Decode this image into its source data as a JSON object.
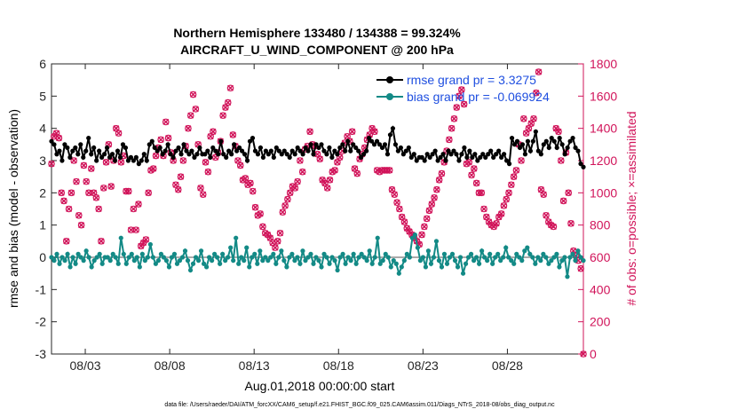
{
  "chart_data": {
    "type": "line",
    "title_line1": "Northern Hemisphere 133480 / 134388 = 99.324%",
    "title_line2": "AIRCRAFT_U_WIND_COMPONENT @ 200 hPa",
    "xlabel": "Aug.01,2018 00:00:00 start",
    "ylabel_left": "rmse and bias (model - observation)",
    "ylabel_right": "# of obs: o=possible; ×=assimilated",
    "ylim_left": [
      -3,
      6
    ],
    "ylim_right": [
      0,
      1800
    ],
    "xlim": [
      0,
      31.5
    ],
    "x_ticks": [
      {
        "x": 2,
        "label": "08/03"
      },
      {
        "x": 7,
        "label": "08/08"
      },
      {
        "x": 12,
        "label": "08/13"
      },
      {
        "x": 17,
        "label": "08/18"
      },
      {
        "x": 22,
        "label": "08/23"
      },
      {
        "x": 27,
        "label": "08/28"
      }
    ],
    "y_ticks_left": [
      "-3",
      "-2",
      "-1",
      "0",
      "1",
      "2",
      "3",
      "4",
      "5",
      "6"
    ],
    "y_ticks_right": [
      "0",
      "200",
      "400",
      "600",
      "800",
      "1000",
      "1200",
      "1400",
      "1600",
      "1800"
    ],
    "legend": [
      {
        "label": "rmse grand pr = 3.3275",
        "color": "#000000"
      },
      {
        "label": "bias grand pr = -0.069924",
        "color": "#138a86"
      }
    ],
    "colors": {
      "rmse": "#000000",
      "bias": "#138a86",
      "obs": "#d1145a",
      "zero_line": "#aaaaaa"
    },
    "rmse": [
      3.6,
      3.5,
      3.2,
      3.3,
      3.0,
      3.5,
      3.4,
      3.1,
      3.3,
      3.4,
      3.2,
      3.5,
      3.1,
      3.3,
      3.7,
      3.2,
      3.4,
      3.0,
      3.3,
      3.1,
      3.2,
      3.4,
      3.1,
      3.2,
      3.0,
      3.3,
      3.1,
      3.5,
      3.4,
      3.0,
      3.1,
      3.0,
      3.1,
      2.9,
      3.0,
      3.2,
      3.0,
      3.5,
      3.6,
      3.4,
      3.3,
      3.4,
      3.2,
      3.3,
      3.5,
      3.2,
      3.1,
      3.3,
      3.4,
      3.2,
      3.5,
      3.3,
      3.2,
      3.3,
      3.1,
      3.2,
      3.4,
      3.2,
      3.2,
      3.3,
      3.1,
      3.4,
      3.3,
      3.2,
      3.6,
      3.2,
      3.1,
      3.3,
      3.2,
      3.5,
      3.3,
      3.4,
      3.3,
      3.2,
      3.0,
      3.6,
      3.7,
      3.3,
      3.2,
      3.4,
      3.1,
      3.3,
      3.2,
      3.3,
      3.1,
      3.4,
      3.3,
      3.2,
      3.3,
      3.2,
      3.1,
      3.3,
      3.2,
      3.4,
      3.3,
      3.2,
      3.4,
      3.3,
      3.5,
      3.2,
      3.5,
      3.4,
      3.5,
      3.3,
      3.2,
      3.4,
      3.1,
      3.3,
      3.2,
      3.4,
      3.5,
      3.3,
      3.6,
      3.3,
      3.5,
      3.4,
      3.3,
      3.1,
      3.2,
      3.3,
      3.7,
      3.6,
      3.5,
      3.6,
      3.5,
      3.4,
      3.5,
      3.2,
      3.8,
      4.0,
      3.5,
      3.3,
      3.4,
      3.2,
      3.3,
      3.4,
      3.1,
      3.2,
      3.0,
      3.1,
      3.1,
      3.0,
      3.2,
      3.1,
      3.2,
      3.3,
      3.0,
      3.1,
      3.2,
      3.0,
      3.3,
      3.2,
      3.3,
      3.2,
      3.0,
      3.2,
      3.4,
      3.1,
      3.3,
      3.1,
      3.2,
      3.0,
      3.1,
      3.2,
      3.1,
      3.2,
      3.3,
      3.1,
      3.2,
      3.3,
      3.1,
      3.2,
      3.0,
      2.9,
      3.7,
      3.5,
      3.6,
      3.4,
      3.5,
      3.2,
      3.6,
      3.3,
      3.6,
      3.9,
      3.3,
      3.2,
      3.5,
      3.6,
      3.4,
      3.7,
      3.6,
      3.4,
      3.7,
      3.5,
      3.2,
      3.4,
      3.6,
      3.7,
      3.4,
      3.3,
      2.9,
      2.8
    ],
    "bias": [
      0.0,
      -0.1,
      0.1,
      -0.2,
      0.0,
      -0.1,
      0.1,
      -0.3,
      0.0,
      -0.2,
      0.1,
      0.0,
      -0.1,
      0.2,
      0.0,
      -0.3,
      -0.1,
      0.0,
      0.1,
      -0.2,
      0.0,
      0.0,
      -0.1,
      0.1,
      0.0,
      -0.2,
      0.6,
      0.1,
      -0.2,
      0.0,
      0.1,
      -0.1,
      0.0,
      -0.3,
      0.1,
      -0.1,
      0.0,
      0.4,
      0.0,
      -0.2,
      -0.1,
      0.1,
      0.0,
      -0.1,
      -0.3,
      0.0,
      0.1,
      -0.2,
      -0.1,
      0.0,
      0.2,
      -0.1,
      -0.4,
      -0.2,
      0.0,
      -0.1,
      0.2,
      -0.2,
      -0.3,
      0.0,
      -0.1,
      0.1,
      0.0,
      -0.2,
      0.1,
      -0.1,
      0.0,
      0.3,
      -0.1,
      0.6,
      -0.2,
      0.0,
      -0.1,
      0.3,
      -0.3,
      0.0,
      0.1,
      -0.2,
      0.2,
      -0.1,
      0.0,
      -0.1,
      0.0,
      0.1,
      -0.2,
      0.0,
      0.2,
      -0.1,
      -0.3,
      0.0,
      0.1,
      -0.1,
      0.0,
      -0.2,
      0.2,
      -0.1,
      0.0,
      0.1,
      -0.2,
      0.0,
      -0.1,
      -0.3,
      0.1,
      0.0,
      -0.2,
      0.0,
      -0.1,
      -0.4,
      0.0,
      0.1,
      -0.2,
      0.0,
      -0.1,
      0.1,
      -0.2,
      0.0,
      0.1,
      0.0,
      -0.1,
      0.2,
      -0.2,
      0.0,
      0.6,
      -0.2,
      -0.1,
      0.1,
      0.0,
      -0.3,
      -0.1,
      -0.2,
      -0.5,
      -0.3,
      -0.1,
      0.1,
      0.0,
      0.6,
      0.7,
      0.3,
      -0.1,
      0.0,
      -0.3,
      0.2,
      -0.2,
      0.0,
      0.5,
      -0.1,
      -0.3,
      0.1,
      -0.2,
      0.0,
      0.1,
      -0.1,
      -0.3,
      0.0,
      -0.5,
      -0.2,
      0.0,
      0.1,
      -0.1,
      0.0,
      -0.2,
      0.2,
      0.0,
      -0.1,
      0.1,
      -0.2,
      0.0,
      0.1,
      -0.1,
      0.0,
      0.3,
      0.0,
      -0.1,
      -0.2,
      0.1,
      0.0,
      -0.1,
      0.2,
      0.3,
      0.1,
      0.0,
      -0.2,
      0.0,
      -0.1,
      0.1,
      0.0,
      -0.2,
      -0.1,
      0.0,
      0.1,
      -0.3,
      -0.1,
      0.0,
      -0.6,
      0.0,
      0.1,
      -0.1,
      0.2,
      0.0,
      -0.1
    ],
    "obs_possible": [
      1180,
      1350,
      1370,
      1340,
      1000,
      950,
      700,
      900,
      1000,
      1200,
      1070,
      860,
      800,
      1170,
      1070,
      1000,
      1150,
      1000,
      970,
      900,
      700,
      1030,
      1190,
      1300,
      1040,
      1200,
      1400,
      1370,
      1190,
      1230,
      1010,
      1010,
      770,
      900,
      770,
      930,
      670,
      690,
      710,
      1000,
      1140,
      1150,
      1230,
      1280,
      1330,
      1230,
      1440,
      1340,
      1250,
      1200,
      1050,
      1020,
      1100,
      1200,
      1290,
      1400,
      1480,
      1610,
      1520,
      1300,
      1030,
      990,
      1190,
      1130,
      1350,
      1380,
      1220,
      1250,
      1320,
      1480,
      1530,
      1560,
      1650,
      1360,
      1290,
      1200,
      1170,
      1080,
      1090,
      1050,
      1060,
      1010,
      910,
      860,
      870,
      790,
      750,
      740,
      720,
      690,
      660,
      700,
      750,
      880,
      920,
      960,
      1000,
      1040,
      1030,
      1070,
      1200,
      1130,
      1270,
      1290,
      1380,
      1300,
      1290,
      1240,
      1210,
      1080,
      1060,
      1030,
      1080,
      1130,
      1140,
      1190,
      1220,
      1260,
      1310,
      1350,
      1320,
      1380,
      1150,
      1120,
      1210,
      1240,
      1280,
      1330,
      1360,
      1400,
      1380,
      1140,
      1130,
      1140,
      1140,
      1140,
      1140,
      1020,
      990,
      940,
      900,
      850,
      820,
      780,
      760,
      740,
      720,
      700,
      680,
      740,
      790,
      840,
      890,
      930,
      970,
      1020,
      1080,
      1120,
      1190,
      1260,
      1330,
      1400,
      1460,
      1530,
      1600,
      1640,
      1550,
      1180,
      1190,
      1110,
      1150,
      1060,
      1000,
      1000,
      900,
      850,
      820,
      800,
      790,
      810,
      850,
      870,
      920,
      960,
      1000,
      1050,
      1100,
      1140,
      1300,
      1200,
      1460,
      1370,
      1400,
      1430,
      1460,
      1620,
      1750,
      1020,
      990,
      860,
      820,
      800,
      790,
      1400,
      1380,
      1200,
      950,
      1250,
      1000,
      810,
      640,
      610,
      580,
      530,
      0
    ],
    "obs_assimilated": [
      1180,
      1350,
      1370,
      1340,
      1000,
      950,
      700,
      900,
      1000,
      1200,
      1070,
      860,
      800,
      1170,
      1070,
      1000,
      1150,
      1000,
      970,
      900,
      700,
      1030,
      1190,
      1300,
      1040,
      1200,
      1400,
      1370,
      1190,
      1230,
      1010,
      1010,
      770,
      900,
      770,
      930,
      670,
      690,
      710,
      1000,
      1140,
      1150,
      1230,
      1280,
      1330,
      1230,
      1440,
      1340,
      1250,
      1200,
      1050,
      1020,
      1100,
      1200,
      1290,
      1400,
      1480,
      1610,
      1520,
      1300,
      1030,
      990,
      1190,
      1130,
      1350,
      1380,
      1220,
      1250,
      1320,
      1480,
      1530,
      1560,
      1650,
      1360,
      1290,
      1200,
      1170,
      1080,
      1090,
      1050,
      1060,
      1010,
      910,
      860,
      870,
      790,
      750,
      740,
      720,
      690,
      660,
      700,
      750,
      880,
      920,
      960,
      1000,
      1040,
      1030,
      1070,
      1200,
      1130,
      1270,
      1290,
      1380,
      1300,
      1290,
      1240,
      1210,
      1080,
      1060,
      1030,
      1080,
      1130,
      1140,
      1190,
      1220,
      1260,
      1310,
      1350,
      1320,
      1380,
      1150,
      1120,
      1210,
      1240,
      1280,
      1330,
      1360,
      1400,
      1380,
      1140,
      1130,
      1140,
      1140,
      1140,
      1140,
      1020,
      990,
      940,
      900,
      850,
      820,
      780,
      760,
      740,
      720,
      700,
      680,
      740,
      790,
      840,
      890,
      930,
      970,
      1020,
      1080,
      1120,
      1190,
      1260,
      1330,
      1400,
      1460,
      1530,
      1600,
      1640,
      1550,
      1180,
      1190,
      1110,
      1150,
      1060,
      1000,
      1000,
      900,
      850,
      820,
      800,
      790,
      810,
      850,
      870,
      920,
      960,
      1000,
      1050,
      1100,
      1140,
      1300,
      1200,
      1460,
      1370,
      1400,
      1430,
      1460,
      1620,
      1750,
      1020,
      990,
      860,
      820,
      800,
      790,
      1400,
      1380,
      1200,
      950,
      1250,
      1000,
      810,
      640,
      610,
      580,
      530,
      0
    ]
  },
  "footer": "data file: /Users/raeder/DAI/ATM_forcXX/CAM6_setup/f.e21.FHIST_BGC.f09_025.CAM6assim.011/Diags_NTrS_2018-08/obs_diag_output.nc"
}
